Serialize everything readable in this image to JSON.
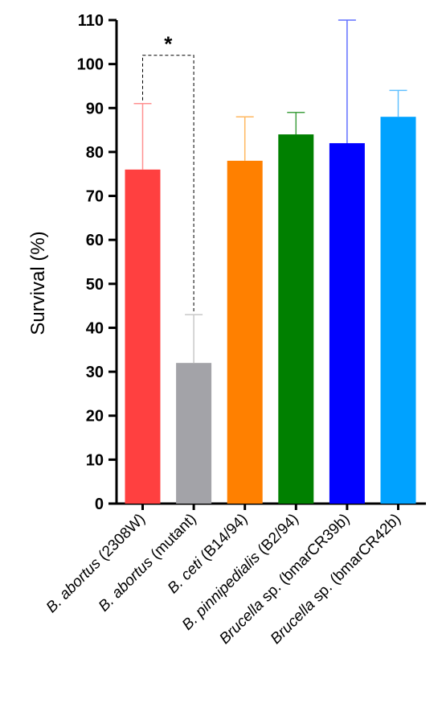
{
  "chart_data": {
    "type": "bar",
    "ylabel": "Survival  (%)",
    "ylim": [
      0,
      110
    ],
    "yticks": [
      0,
      10,
      20,
      30,
      40,
      50,
      60,
      70,
      80,
      90,
      100,
      110
    ],
    "categories": [
      {
        "italic": "B. abortus",
        "rest": " (2308W)"
      },
      {
        "italic": "B. abortus",
        "rest": " (mutant)"
      },
      {
        "italic": "B. ceti",
        "rest": " (B14/94)"
      },
      {
        "italic": "B. pinnipedialis",
        "rest": " (B2/94)"
      },
      {
        "italic": "Brucella",
        "rest": " sp. (bmarCR39b)"
      },
      {
        "italic": "Brucella",
        "rest": " sp. (bmarCR42b)"
      }
    ],
    "values": [
      76,
      32,
      78,
      84,
      82,
      88
    ],
    "errors": [
      15,
      11,
      10,
      5,
      28,
      6
    ],
    "colors": [
      "#ff4040",
      "#a3a3a8",
      "#ff8000",
      "#008000",
      "#0000ff",
      "#00a2ff"
    ],
    "error_colors": [
      "#ff9090",
      "#c8c8c8",
      "#ffb860",
      "#40a040",
      "#6070ff",
      "#60c0ff"
    ],
    "significance": {
      "between": [
        0,
        1
      ],
      "label": "*",
      "y": 102
    }
  }
}
